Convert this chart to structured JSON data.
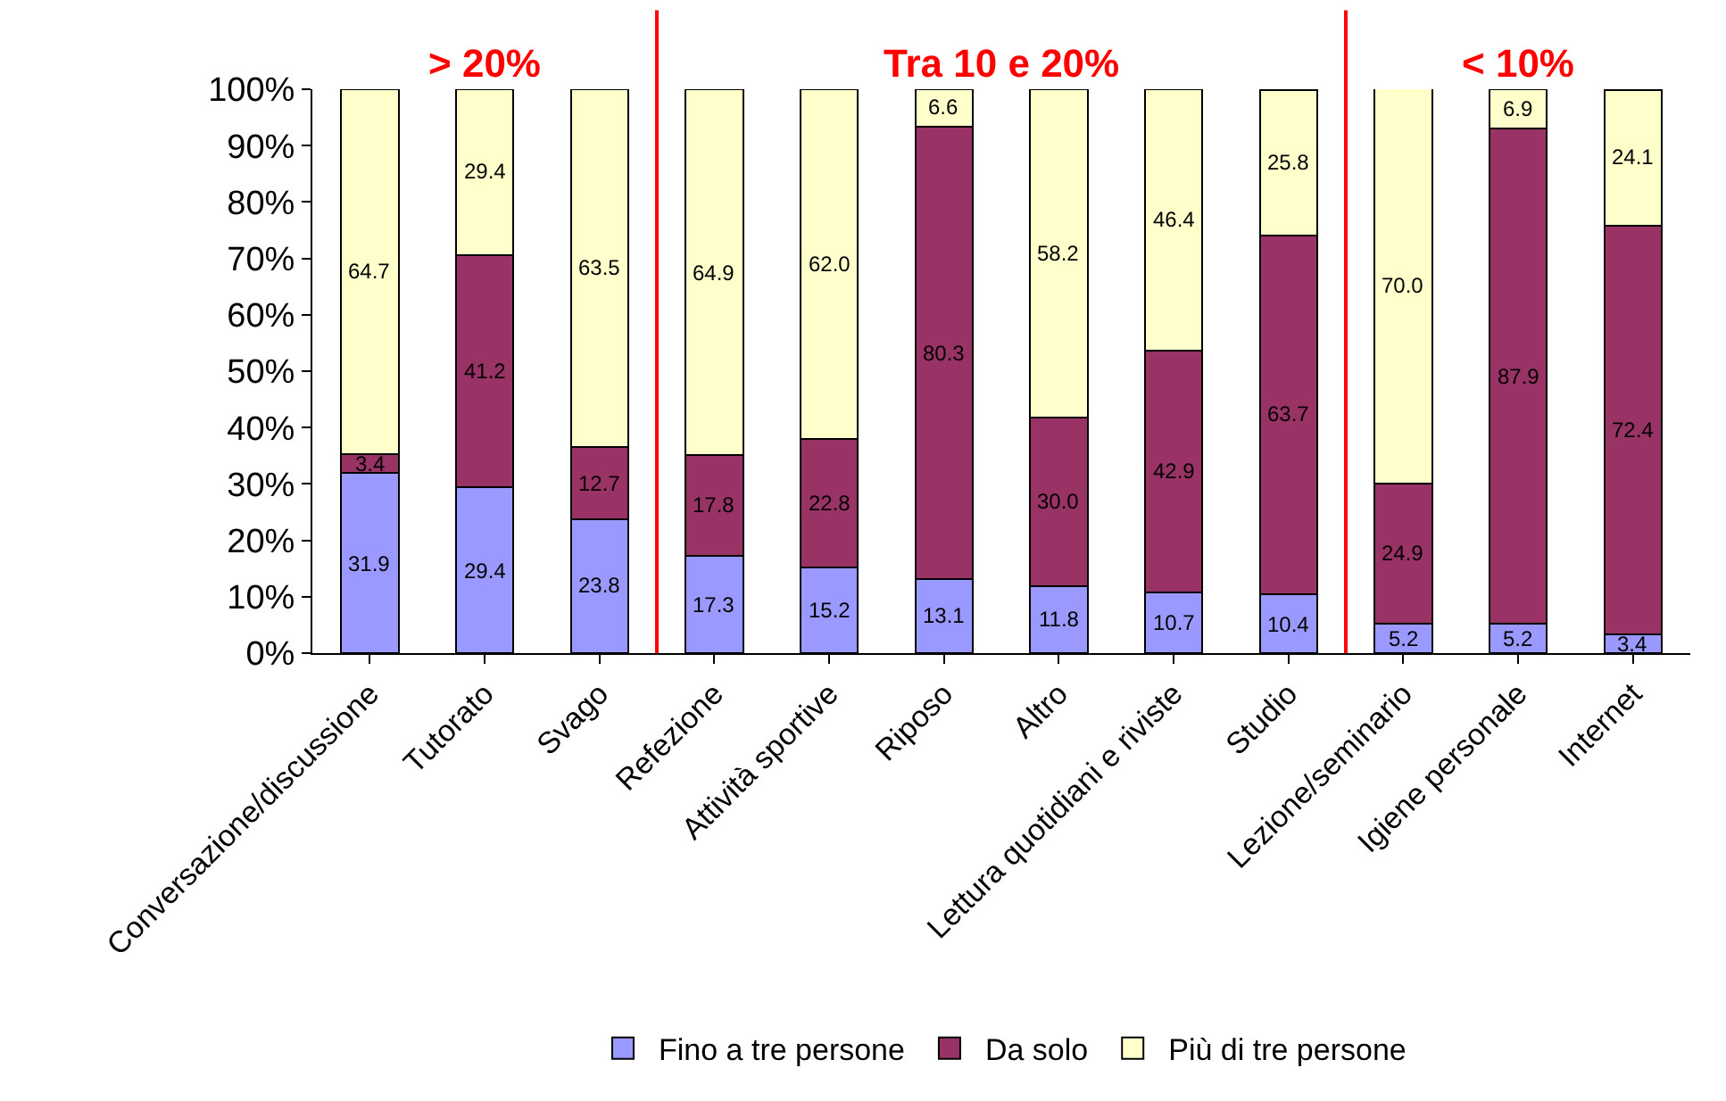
{
  "chart_data": {
    "type": "bar",
    "stacked": true,
    "categories": [
      "Conversazione/discussione",
      "Tutorato",
      "Svago",
      "Refezione",
      "Attività sportive",
      "Riposo",
      "Altro",
      "Lettura quotidiani e riviste",
      "Studio",
      "Lezione/seminario",
      "Igiene personale",
      "Internet"
    ],
    "series": [
      {
        "name": "Fino a tre persone",
        "color": "#9999ff",
        "values": [
          31.9,
          29.4,
          23.8,
          17.3,
          15.2,
          13.1,
          11.8,
          10.7,
          10.4,
          5.2,
          5.2,
          3.4
        ],
        "value_labels": [
          "31.9",
          "29.4",
          "23.8",
          "17.3",
          "15.2",
          "13.1",
          "11.8",
          "10.7",
          "10.4",
          "5.2",
          "5.2",
          "3.4"
        ]
      },
      {
        "name": "Da solo",
        "color": "#993366",
        "values": [
          3.4,
          41.2,
          12.7,
          17.8,
          22.8,
          80.3,
          30.0,
          42.9,
          63.7,
          24.9,
          87.9,
          72.4
        ],
        "value_labels": [
          "3.4",
          "41.2",
          "12.7",
          "17.8",
          "22.8",
          "80.3",
          "30.0",
          "42.9",
          "63.7",
          "24.9",
          "87.9",
          "72.4"
        ]
      },
      {
        "name": "Più di tre persone",
        "color": "#ffffcc",
        "values": [
          64.7,
          29.4,
          63.5,
          64.9,
          62.0,
          6.6,
          58.2,
          46.4,
          25.8,
          70.0,
          6.9,
          24.1
        ],
        "value_labels": [
          "64.7",
          "29.4",
          "63.5",
          "64.9",
          "62.0",
          "6.6",
          "58.2",
          "46.4",
          "25.8",
          "70.0",
          "6.9",
          "24.1"
        ]
      }
    ],
    "ylim": [
      0,
      100
    ],
    "yticks": [
      {
        "value": 0,
        "label": "0%"
      },
      {
        "value": 10,
        "label": "10%"
      },
      {
        "value": 20,
        "label": "20%"
      },
      {
        "value": 30,
        "label": "30%"
      },
      {
        "value": 40,
        "label": "40%"
      },
      {
        "value": 50,
        "label": "50%"
      },
      {
        "value": 60,
        "label": "60%"
      },
      {
        "value": 70,
        "label": "70%"
      },
      {
        "value": 80,
        "label": "80%"
      },
      {
        "value": 90,
        "label": "90%"
      },
      {
        "value": 100,
        "label": "100%"
      }
    ],
    "grid": false,
    "legend": "bottom",
    "annotations": [
      "> 20%",
      "Tra 10 e 20%",
      "< 10%"
    ]
  }
}
